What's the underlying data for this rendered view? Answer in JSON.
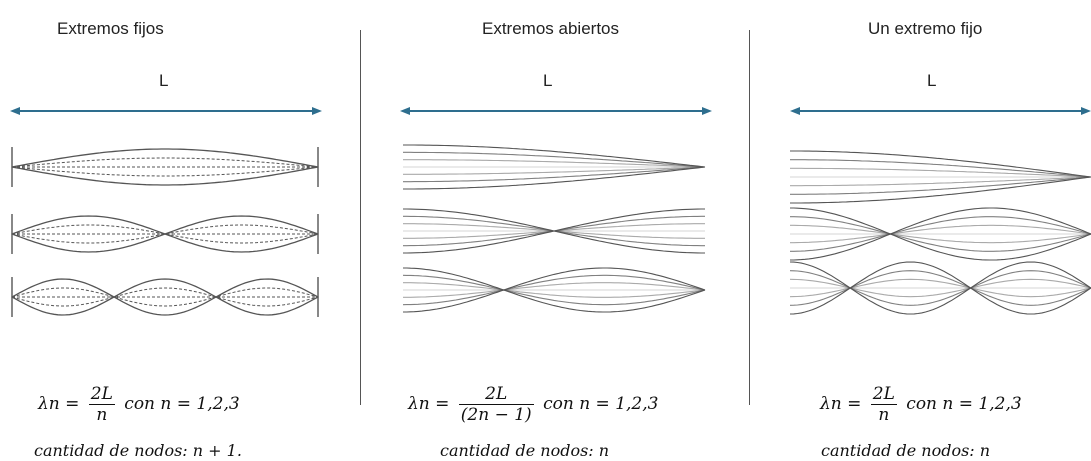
{
  "panels": [
    {
      "title": "Extremos fijos",
      "length_label": "L",
      "formula": {
        "lhs": "λn =",
        "num": "2L",
        "den": "n",
        "rhs": "con n = 1,2,3"
      },
      "nodes_text": "cantidad de nodos: n + 1."
    },
    {
      "title": "Extremos abiertos",
      "length_label": "L",
      "formula": {
        "lhs": "λn =",
        "num": "2L",
        "den": "(2n − 1)",
        "rhs": "con n = 1,2,3"
      },
      "nodes_text": "cantidad de nodos: n"
    },
    {
      "title": "Un extremo fijo",
      "length_label": "L",
      "formula": {
        "lhs": "λn =",
        "num": "2L",
        "den": "n",
        "rhs": "con n = 1,2,3"
      },
      "nodes_text": "cantidad de nodos: n"
    }
  ],
  "colors": {
    "arrow": "#2e6e8e",
    "wave": "#555555",
    "text": "#222222"
  }
}
